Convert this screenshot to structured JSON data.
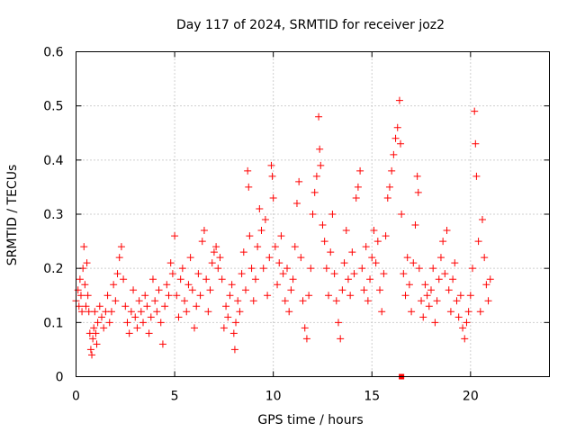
{
  "chart_data": {
    "type": "scatter",
    "title": "Day 117 of 2024, SRMTID for receiver joz2",
    "xlabel": "GPS time / hours",
    "ylabel": "SRMTID / TECUs",
    "xlim": [
      0,
      24
    ],
    "ylim": [
      0,
      0.6
    ],
    "xticks": [
      0,
      5,
      10,
      15,
      20
    ],
    "xtick_labels": [
      "0",
      "5",
      "10",
      "15",
      "20"
    ],
    "yticks": [
      0,
      0.1,
      0.2,
      0.3,
      0.4,
      0.5,
      0.6
    ],
    "ytick_labels": [
      "0",
      "0.1",
      "0.2",
      "0.3",
      "0.4",
      "0.5",
      "0.6"
    ],
    "grid": true,
    "marker": "plus",
    "series_color": "#ff0000",
    "series": [
      {
        "name": "SRMTID",
        "points": [
          [
            0.0,
            0.14
          ],
          [
            0.1,
            0.16
          ],
          [
            0.15,
            0.13
          ],
          [
            0.2,
            0.18
          ],
          [
            0.25,
            0.15
          ],
          [
            0.3,
            0.12
          ],
          [
            0.35,
            0.2
          ],
          [
            0.4,
            0.24
          ],
          [
            0.45,
            0.17
          ],
          [
            0.5,
            0.13
          ],
          [
            0.55,
            0.21
          ],
          [
            0.6,
            0.15
          ],
          [
            0.65,
            0.12
          ],
          [
            0.7,
            0.08
          ],
          [
            0.75,
            0.05
          ],
          [
            0.8,
            0.04
          ],
          [
            0.85,
            0.07
          ],
          [
            0.9,
            0.09
          ],
          [
            0.95,
            0.12
          ],
          [
            1.0,
            0.08
          ],
          [
            1.05,
            0.06
          ],
          [
            1.1,
            0.1
          ],
          [
            1.2,
            0.13
          ],
          [
            1.3,
            0.11
          ],
          [
            1.4,
            0.09
          ],
          [
            1.5,
            0.12
          ],
          [
            1.6,
            0.15
          ],
          [
            1.7,
            0.1
          ],
          [
            1.8,
            0.12
          ],
          [
            1.9,
            0.17
          ],
          [
            2.0,
            0.14
          ],
          [
            2.1,
            0.19
          ],
          [
            2.2,
            0.22
          ],
          [
            2.3,
            0.24
          ],
          [
            2.4,
            0.18
          ],
          [
            2.5,
            0.13
          ],
          [
            2.6,
            0.1
          ],
          [
            2.7,
            0.08
          ],
          [
            2.8,
            0.12
          ],
          [
            2.9,
            0.16
          ],
          [
            3.0,
            0.11
          ],
          [
            3.1,
            0.09
          ],
          [
            3.2,
            0.14
          ],
          [
            3.3,
            0.12
          ],
          [
            3.4,
            0.1
          ],
          [
            3.5,
            0.15
          ],
          [
            3.6,
            0.13
          ],
          [
            3.7,
            0.08
          ],
          [
            3.8,
            0.11
          ],
          [
            3.9,
            0.18
          ],
          [
            4.0,
            0.14
          ],
          [
            4.1,
            0.12
          ],
          [
            4.2,
            0.16
          ],
          [
            4.3,
            0.1
          ],
          [
            4.4,
            0.06
          ],
          [
            4.5,
            0.13
          ],
          [
            4.6,
            0.17
          ],
          [
            4.7,
            0.15
          ],
          [
            4.8,
            0.21
          ],
          [
            4.9,
            0.19
          ],
          [
            5.0,
            0.26
          ],
          [
            5.1,
            0.15
          ],
          [
            5.2,
            0.11
          ],
          [
            5.3,
            0.18
          ],
          [
            5.4,
            0.2
          ],
          [
            5.5,
            0.14
          ],
          [
            5.6,
            0.12
          ],
          [
            5.7,
            0.17
          ],
          [
            5.8,
            0.22
          ],
          [
            5.9,
            0.16
          ],
          [
            6.0,
            0.09
          ],
          [
            6.1,
            0.13
          ],
          [
            6.2,
            0.19
          ],
          [
            6.3,
            0.15
          ],
          [
            6.4,
            0.25
          ],
          [
            6.5,
            0.27
          ],
          [
            6.6,
            0.18
          ],
          [
            6.7,
            0.12
          ],
          [
            6.8,
            0.16
          ],
          [
            6.9,
            0.21
          ],
          [
            7.0,
            0.23
          ],
          [
            7.1,
            0.24
          ],
          [
            7.2,
            0.2
          ],
          [
            7.3,
            0.22
          ],
          [
            7.4,
            0.18
          ],
          [
            7.5,
            0.09
          ],
          [
            7.6,
            0.13
          ],
          [
            7.7,
            0.11
          ],
          [
            7.8,
            0.15
          ],
          [
            7.9,
            0.17
          ],
          [
            8.0,
            0.08
          ],
          [
            8.05,
            0.05
          ],
          [
            8.1,
            0.1
          ],
          [
            8.2,
            0.14
          ],
          [
            8.3,
            0.12
          ],
          [
            8.4,
            0.19
          ],
          [
            8.5,
            0.23
          ],
          [
            8.6,
            0.16
          ],
          [
            8.7,
            0.38
          ],
          [
            8.75,
            0.35
          ],
          [
            8.8,
            0.26
          ],
          [
            8.9,
            0.2
          ],
          [
            9.0,
            0.14
          ],
          [
            9.1,
            0.18
          ],
          [
            9.2,
            0.24
          ],
          [
            9.3,
            0.31
          ],
          [
            9.4,
            0.27
          ],
          [
            9.5,
            0.2
          ],
          [
            9.6,
            0.29
          ],
          [
            9.7,
            0.15
          ],
          [
            9.8,
            0.22
          ],
          [
            9.9,
            0.39
          ],
          [
            9.95,
            0.37
          ],
          [
            10.0,
            0.33
          ],
          [
            10.1,
            0.24
          ],
          [
            10.2,
            0.17
          ],
          [
            10.3,
            0.21
          ],
          [
            10.4,
            0.26
          ],
          [
            10.5,
            0.19
          ],
          [
            10.6,
            0.14
          ],
          [
            10.7,
            0.2
          ],
          [
            10.8,
            0.12
          ],
          [
            10.9,
            0.16
          ],
          [
            11.0,
            0.18
          ],
          [
            11.1,
            0.24
          ],
          [
            11.2,
            0.32
          ],
          [
            11.3,
            0.36
          ],
          [
            11.4,
            0.22
          ],
          [
            11.5,
            0.14
          ],
          [
            11.6,
            0.09
          ],
          [
            11.7,
            0.07
          ],
          [
            11.8,
            0.15
          ],
          [
            11.9,
            0.2
          ],
          [
            12.0,
            0.3
          ],
          [
            12.1,
            0.34
          ],
          [
            12.2,
            0.37
          ],
          [
            12.3,
            0.48
          ],
          [
            12.35,
            0.42
          ],
          [
            12.4,
            0.39
          ],
          [
            12.5,
            0.28
          ],
          [
            12.6,
            0.25
          ],
          [
            12.7,
            0.2
          ],
          [
            12.8,
            0.15
          ],
          [
            12.9,
            0.23
          ],
          [
            13.0,
            0.3
          ],
          [
            13.1,
            0.19
          ],
          [
            13.2,
            0.14
          ],
          [
            13.3,
            0.1
          ],
          [
            13.4,
            0.07
          ],
          [
            13.5,
            0.16
          ],
          [
            13.6,
            0.21
          ],
          [
            13.7,
            0.27
          ],
          [
            13.8,
            0.18
          ],
          [
            13.9,
            0.15
          ],
          [
            14.0,
            0.23
          ],
          [
            14.1,
            0.19
          ],
          [
            14.2,
            0.33
          ],
          [
            14.3,
            0.35
          ],
          [
            14.4,
            0.38
          ],
          [
            14.5,
            0.2
          ],
          [
            14.6,
            0.16
          ],
          [
            14.7,
            0.24
          ],
          [
            14.8,
            0.14
          ],
          [
            14.9,
            0.18
          ],
          [
            15.0,
            0.22
          ],
          [
            15.1,
            0.27
          ],
          [
            15.2,
            0.21
          ],
          [
            15.3,
            0.25
          ],
          [
            15.4,
            0.16
          ],
          [
            15.5,
            0.12
          ],
          [
            15.6,
            0.19
          ],
          [
            15.7,
            0.26
          ],
          [
            15.8,
            0.33
          ],
          [
            15.9,
            0.35
          ],
          [
            16.0,
            0.38
          ],
          [
            16.1,
            0.41
          ],
          [
            16.2,
            0.44
          ],
          [
            16.3,
            0.46
          ],
          [
            16.4,
            0.51
          ],
          [
            16.45,
            0.43
          ],
          [
            16.5,
            0.3
          ],
          [
            16.6,
            0.19
          ],
          [
            16.7,
            0.15
          ],
          [
            16.8,
            0.22
          ],
          [
            16.9,
            0.17
          ],
          [
            17.0,
            0.12
          ],
          [
            17.1,
            0.21
          ],
          [
            17.2,
            0.28
          ],
          [
            17.3,
            0.37
          ],
          [
            17.35,
            0.34
          ],
          [
            17.4,
            0.2
          ],
          [
            17.5,
            0.14
          ],
          [
            17.6,
            0.11
          ],
          [
            17.7,
            0.17
          ],
          [
            17.8,
            0.15
          ],
          [
            17.9,
            0.13
          ],
          [
            18.0,
            0.16
          ],
          [
            18.1,
            0.2
          ],
          [
            18.2,
            0.1
          ],
          [
            18.3,
            0.14
          ],
          [
            18.4,
            0.18
          ],
          [
            18.5,
            0.22
          ],
          [
            18.6,
            0.25
          ],
          [
            18.7,
            0.19
          ],
          [
            18.8,
            0.27
          ],
          [
            18.9,
            0.16
          ],
          [
            19.0,
            0.12
          ],
          [
            19.1,
            0.18
          ],
          [
            19.2,
            0.21
          ],
          [
            19.3,
            0.14
          ],
          [
            19.4,
            0.11
          ],
          [
            19.5,
            0.15
          ],
          [
            19.6,
            0.09
          ],
          [
            19.7,
            0.07
          ],
          [
            19.8,
            0.1
          ],
          [
            19.9,
            0.12
          ],
          [
            20.0,
            0.15
          ],
          [
            20.1,
            0.2
          ],
          [
            20.2,
            0.49
          ],
          [
            20.25,
            0.43
          ],
          [
            20.3,
            0.37
          ],
          [
            20.4,
            0.25
          ],
          [
            20.5,
            0.12
          ],
          [
            20.6,
            0.29
          ],
          [
            20.7,
            0.22
          ],
          [
            20.8,
            0.17
          ],
          [
            20.9,
            0.14
          ],
          [
            21.0,
            0.18
          ],
          [
            16.5,
            0.0
          ]
        ]
      }
    ]
  }
}
